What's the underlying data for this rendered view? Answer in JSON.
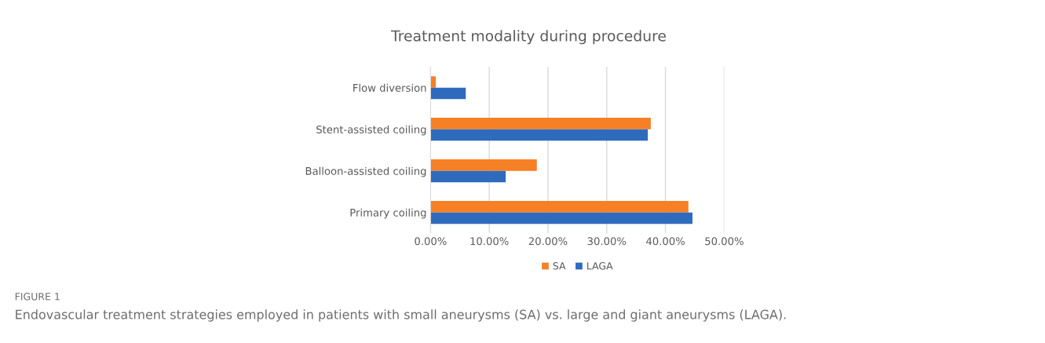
{
  "chart_data": {
    "type": "bar",
    "orientation": "horizontal",
    "title": "Treatment modality during procedure",
    "categories": [
      "Flow diversion",
      "Stent-assisted coiling",
      "Balloon-assisted coiling",
      "Primary coiling"
    ],
    "series": [
      {
        "name": "SA",
        "color": "#f58025",
        "values": [
          0.9,
          37.5,
          18.1,
          43.9
        ]
      },
      {
        "name": "LAGA",
        "color": "#2e6bbd",
        "values": [
          6.0,
          37.0,
          12.8,
          44.6
        ]
      }
    ],
    "xlim": [
      0,
      50
    ],
    "xticks": [
      {
        "value": 0,
        "label": "0.00%"
      },
      {
        "value": 10,
        "label": "10.00%"
      },
      {
        "value": 20,
        "label": "20.00%"
      },
      {
        "value": 30,
        "label": "30.00%"
      },
      {
        "value": 40,
        "label": "40.00%"
      },
      {
        "value": 50,
        "label": "50.00%"
      }
    ],
    "grid": "x",
    "legend": "bottom",
    "annotations": [
      "FIGURE 1",
      "Endovascular treatment strategies employed in patients with small aneurysms (SA) vs. large and giant aneurysms (LAGA)."
    ]
  }
}
